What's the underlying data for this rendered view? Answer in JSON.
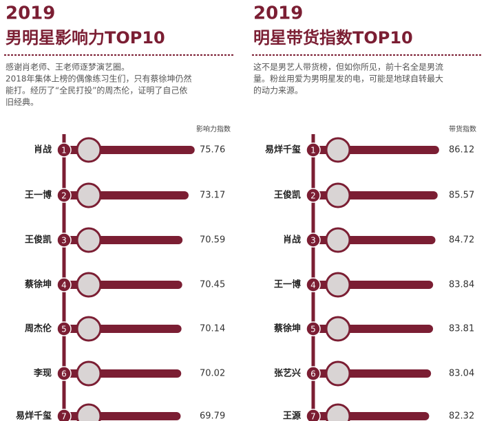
{
  "chart_data": [
    {
      "type": "bar",
      "orientation": "horizontal",
      "title": "2019",
      "subtitle": "男明星影响力TOP10",
      "description": [
        "感谢肖老师、王老师逐梦演艺圈。",
        "2018年集体上榜的偶像练习生们，只有蔡徐坤仍然",
        "能打。经历了“全民打投”的周杰伦，证明了自己依",
        "旧经典。"
      ],
      "value_label": "影响力指数",
      "categories": [
        "肖战",
        "王一博",
        "王俊凯",
        "蔡徐坤",
        "周杰伦",
        "李现",
        "易烊千玺"
      ],
      "ranks": [
        1,
        2,
        3,
        4,
        5,
        6,
        7
      ],
      "values": [
        75.76,
        73.17,
        70.59,
        70.45,
        70.14,
        70.02,
        69.79
      ],
      "color": "#7b1e33",
      "xlim": [
        20,
        77
      ]
    },
    {
      "type": "bar",
      "orientation": "horizontal",
      "title": "2019",
      "subtitle": "明星带货指数TOP10",
      "description": [
        "这不是男艺人带货榜，但如你所见，前十名全是男流",
        "量。粉丝用爱为男明星发的电，可能是地球自转最大",
        "的动力来源。"
      ],
      "value_label": "带货指数",
      "categories": [
        "易烊千玺",
        "王俊凯",
        "肖战",
        "王一博",
        "蔡徐坤",
        "张艺兴",
        "王源"
      ],
      "ranks": [
        1,
        2,
        3,
        4,
        5,
        6,
        7
      ],
      "values": [
        86.12,
        85.57,
        84.72,
        83.84,
        83.81,
        83.04,
        82.32
      ],
      "color": "#7b1e33",
      "xlim": [
        38,
        88
      ]
    }
  ]
}
